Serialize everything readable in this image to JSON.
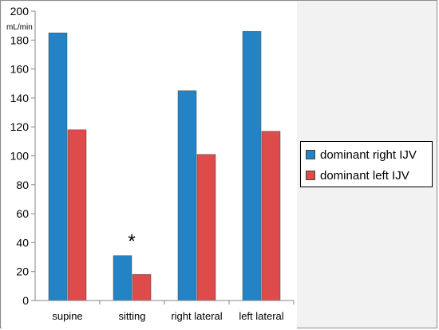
{
  "chart_data": {
    "type": "bar",
    "categories": [
      "supine",
      "sitting",
      "right lateral",
      "left lateral"
    ],
    "series": [
      {
        "name": "dominant right IJV",
        "color": "#2383c4",
        "values": [
          185,
          31,
          145,
          186
        ]
      },
      {
        "name": "dominant left IJV",
        "color": "#dd4b4b",
        "values": [
          118,
          18,
          101,
          117
        ]
      }
    ],
    "ylim": [
      0,
      200
    ],
    "yticks": [
      0,
      20,
      40,
      60,
      80,
      100,
      120,
      140,
      160,
      180,
      200
    ],
    "unit_label": "mL/min",
    "grid": false,
    "legend_position": "right",
    "annotations": [
      {
        "text": "*",
        "category": "sitting"
      }
    ]
  }
}
